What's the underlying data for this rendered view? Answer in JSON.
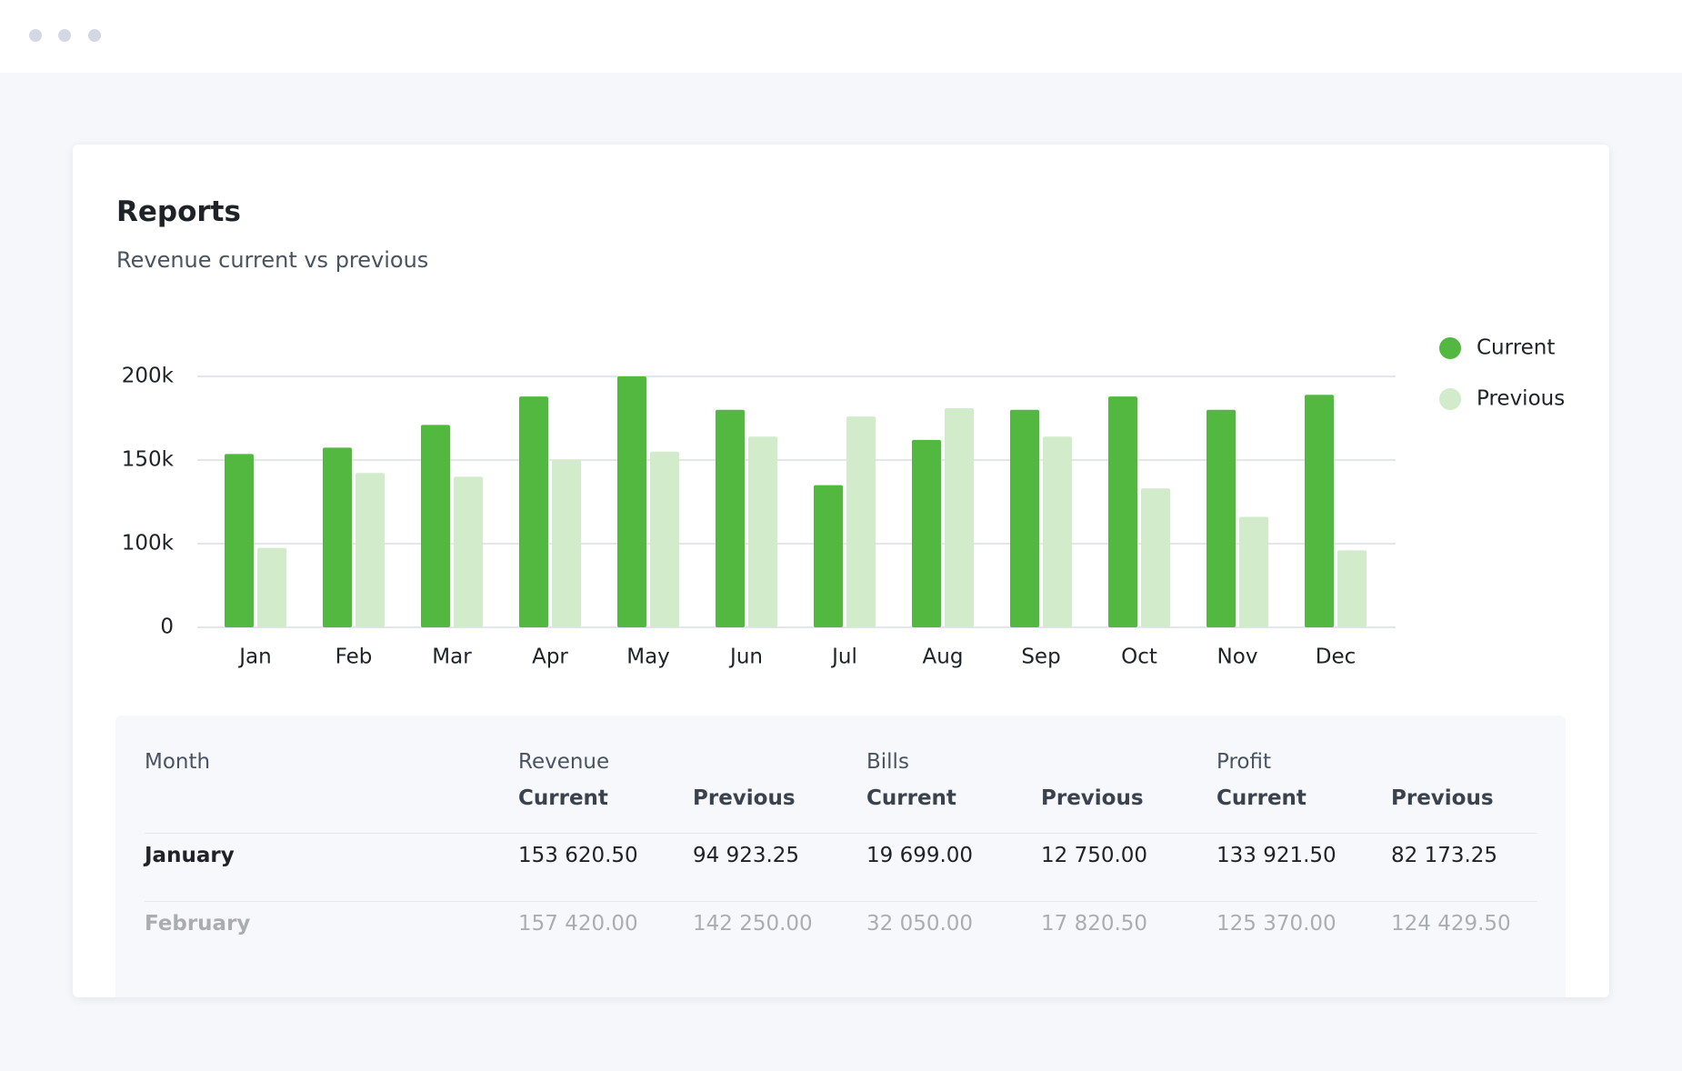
{
  "chart_data": {
    "type": "bar",
    "title": "Reports",
    "subtitle": "Revenue current vs previous",
    "categories": [
      "Jan",
      "Feb",
      "Mar",
      "Apr",
      "May",
      "Jun",
      "Jul",
      "Aug",
      "Sep",
      "Oct",
      "Nov",
      "Dec"
    ],
    "series": [
      {
        "name": "Current",
        "color": "#52b840",
        "values": [
          153620.5,
          157420,
          171000,
          188000,
          200000,
          180000,
          135000,
          162000,
          180000,
          188000,
          180000,
          189000
        ]
      },
      {
        "name": "Previous",
        "color": "#d1ebcb",
        "values": [
          94923.25,
          142250,
          140000,
          150000,
          155000,
          164000,
          176000,
          181000,
          164000,
          133000,
          116000,
          92000
        ]
      }
    ],
    "ylim": [
      0,
      200000
    ],
    "yticks": [
      0,
      {
        "value": 100000,
        "label": "100k"
      },
      {
        "value": 150000,
        "label": "150k"
      },
      {
        "value": 200000,
        "label": "200k"
      }
    ],
    "grid": true,
    "legend": "top-right"
  },
  "table": {
    "groups": [
      "Month",
      "Revenue",
      "Bills",
      "Profit"
    ],
    "subheaders": [
      "Current",
      "Previous",
      "Current",
      "Previous",
      "Current",
      "Previous"
    ],
    "rows": [
      [
        "January",
        "153 620.50",
        "94 923.25",
        "19 699.00",
        "12 750.00",
        "133 921.50",
        "82 173.25"
      ],
      [
        "February",
        "157 420.00",
        "142 250.00",
        "32 050.00",
        "17 820.50",
        "125 370.00",
        "124 429.50"
      ]
    ]
  }
}
